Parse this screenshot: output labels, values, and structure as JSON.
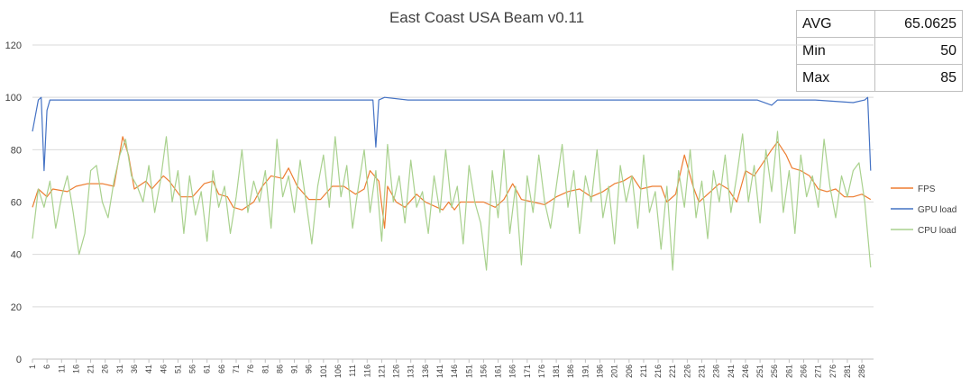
{
  "chart_data": {
    "type": "line",
    "title": "East Coast USA Beam  v0.11",
    "xlabel": "",
    "ylabel": "",
    "ylim": [
      0,
      120
    ],
    "yticks": [
      0,
      20,
      40,
      60,
      80,
      100,
      120
    ],
    "xlim": [
      1,
      290
    ],
    "xtick_start": 1,
    "xtick_step": 5,
    "xtick_count": 58,
    "grid": "horizontal",
    "legend_position": "right",
    "stats_table": [
      {
        "label": "AVG",
        "value": "65.0625"
      },
      {
        "label": "Min",
        "value": "50"
      },
      {
        "label": "Max",
        "value": "85"
      }
    ],
    "series": [
      {
        "name": "FPS",
        "color": "#ed7d31",
        "points": [
          [
            1,
            58
          ],
          [
            3,
            65
          ],
          [
            6,
            62
          ],
          [
            8,
            65
          ],
          [
            13,
            64
          ],
          [
            16,
            66
          ],
          [
            20,
            67
          ],
          [
            25,
            67
          ],
          [
            29,
            66
          ],
          [
            32,
            85
          ],
          [
            34,
            78
          ],
          [
            36,
            65
          ],
          [
            40,
            68
          ],
          [
            42,
            65
          ],
          [
            46,
            70
          ],
          [
            48,
            68
          ],
          [
            52,
            62
          ],
          [
            56,
            62
          ],
          [
            60,
            67
          ],
          [
            63,
            68
          ],
          [
            65,
            63
          ],
          [
            68,
            62
          ],
          [
            70,
            58
          ],
          [
            73,
            57
          ],
          [
            77,
            60
          ],
          [
            80,
            66
          ],
          [
            83,
            70
          ],
          [
            87,
            69
          ],
          [
            89,
            73
          ],
          [
            92,
            66
          ],
          [
            96,
            61
          ],
          [
            100,
            61
          ],
          [
            104,
            66
          ],
          [
            108,
            66
          ],
          [
            112,
            63
          ],
          [
            115,
            65
          ],
          [
            117,
            72
          ],
          [
            120,
            68
          ],
          [
            122,
            50
          ],
          [
            123,
            66
          ],
          [
            126,
            60
          ],
          [
            129,
            58
          ],
          [
            133,
            63
          ],
          [
            136,
            60
          ],
          [
            140,
            58
          ],
          [
            142,
            57
          ],
          [
            144,
            60
          ],
          [
            146,
            57
          ],
          [
            148,
            60
          ],
          [
            152,
            60
          ],
          [
            156,
            60
          ],
          [
            160,
            58
          ],
          [
            163,
            61
          ],
          [
            166,
            67
          ],
          [
            169,
            61
          ],
          [
            173,
            60
          ],
          [
            177,
            59
          ],
          [
            181,
            62
          ],
          [
            185,
            64
          ],
          [
            189,
            65
          ],
          [
            193,
            62
          ],
          [
            197,
            64
          ],
          [
            201,
            67
          ],
          [
            204,
            68
          ],
          [
            207,
            70
          ],
          [
            210,
            65
          ],
          [
            214,
            66
          ],
          [
            217,
            66
          ],
          [
            219,
            60
          ],
          [
            222,
            63
          ],
          [
            225,
            78
          ],
          [
            228,
            66
          ],
          [
            230,
            60
          ],
          [
            233,
            63
          ],
          [
            237,
            67
          ],
          [
            240,
            65
          ],
          [
            243,
            60
          ],
          [
            246,
            72
          ],
          [
            249,
            70
          ],
          [
            252,
            75
          ],
          [
            255,
            80
          ],
          [
            257,
            83
          ],
          [
            260,
            78
          ],
          [
            262,
            73
          ],
          [
            265,
            72
          ],
          [
            268,
            70
          ],
          [
            271,
            65
          ],
          [
            274,
            64
          ],
          [
            277,
            65
          ],
          [
            280,
            62
          ],
          [
            283,
            62
          ],
          [
            286,
            63
          ],
          [
            289,
            61
          ]
        ]
      },
      {
        "name": "GPU load",
        "color": "#4472c4",
        "points": [
          [
            1,
            87
          ],
          [
            3,
            99
          ],
          [
            4,
            100
          ],
          [
            5,
            72
          ],
          [
            6,
            95
          ],
          [
            7,
            99
          ],
          [
            10,
            99
          ],
          [
            20,
            99
          ],
          [
            40,
            99
          ],
          [
            60,
            99
          ],
          [
            80,
            99
          ],
          [
            100,
            99
          ],
          [
            115,
            99
          ],
          [
            118,
            99
          ],
          [
            119,
            81
          ],
          [
            120,
            99
          ],
          [
            122,
            100
          ],
          [
            130,
            99
          ],
          [
            150,
            99
          ],
          [
            170,
            99
          ],
          [
            190,
            99
          ],
          [
            210,
            99
          ],
          [
            230,
            99
          ],
          [
            250,
            99
          ],
          [
            255,
            97
          ],
          [
            257,
            99
          ],
          [
            270,
            99
          ],
          [
            283,
            98
          ],
          [
            287,
            99
          ],
          [
            288,
            100
          ],
          [
            289,
            72
          ]
        ]
      },
      {
        "name": "CPU load",
        "color": "#a9d18e",
        "points": [
          [
            1,
            46
          ],
          [
            3,
            65
          ],
          [
            5,
            58
          ],
          [
            7,
            68
          ],
          [
            9,
            50
          ],
          [
            11,
            62
          ],
          [
            13,
            70
          ],
          [
            15,
            56
          ],
          [
            17,
            40
          ],
          [
            19,
            48
          ],
          [
            21,
            72
          ],
          [
            23,
            74
          ],
          [
            25,
            60
          ],
          [
            27,
            54
          ],
          [
            29,
            68
          ],
          [
            31,
            78
          ],
          [
            33,
            84
          ],
          [
            35,
            70
          ],
          [
            37,
            66
          ],
          [
            39,
            60
          ],
          [
            41,
            74
          ],
          [
            43,
            56
          ],
          [
            45,
            68
          ],
          [
            47,
            85
          ],
          [
            49,
            60
          ],
          [
            51,
            72
          ],
          [
            53,
            48
          ],
          [
            55,
            70
          ],
          [
            57,
            55
          ],
          [
            59,
            64
          ],
          [
            61,
            45
          ],
          [
            63,
            72
          ],
          [
            65,
            58
          ],
          [
            67,
            66
          ],
          [
            69,
            48
          ],
          [
            71,
            62
          ],
          [
            73,
            80
          ],
          [
            75,
            56
          ],
          [
            77,
            68
          ],
          [
            79,
            60
          ],
          [
            81,
            72
          ],
          [
            83,
            50
          ],
          [
            85,
            84
          ],
          [
            87,
            62
          ],
          [
            89,
            70
          ],
          [
            91,
            56
          ],
          [
            93,
            76
          ],
          [
            95,
            60
          ],
          [
            97,
            44
          ],
          [
            99,
            66
          ],
          [
            101,
            78
          ],
          [
            103,
            58
          ],
          [
            105,
            85
          ],
          [
            107,
            62
          ],
          [
            109,
            74
          ],
          [
            111,
            50
          ],
          [
            113,
            66
          ],
          [
            115,
            80
          ],
          [
            117,
            56
          ],
          [
            119,
            72
          ],
          [
            121,
            45
          ],
          [
            123,
            82
          ],
          [
            125,
            60
          ],
          [
            127,
            70
          ],
          [
            129,
            52
          ],
          [
            131,
            76
          ],
          [
            133,
            58
          ],
          [
            135,
            64
          ],
          [
            137,
            48
          ],
          [
            139,
            70
          ],
          [
            141,
            56
          ],
          [
            143,
            80
          ],
          [
            145,
            58
          ],
          [
            147,
            66
          ],
          [
            149,
            44
          ],
          [
            151,
            74
          ],
          [
            153,
            60
          ],
          [
            155,
            52
          ],
          [
            157,
            34
          ],
          [
            159,
            72
          ],
          [
            161,
            54
          ],
          [
            163,
            80
          ],
          [
            165,
            48
          ],
          [
            167,
            66
          ],
          [
            169,
            36
          ],
          [
            171,
            70
          ],
          [
            173,
            56
          ],
          [
            175,
            78
          ],
          [
            177,
            60
          ],
          [
            179,
            50
          ],
          [
            181,
            66
          ],
          [
            183,
            82
          ],
          [
            185,
            58
          ],
          [
            187,
            72
          ],
          [
            189,
            48
          ],
          [
            191,
            70
          ],
          [
            193,
            60
          ],
          [
            195,
            80
          ],
          [
            197,
            54
          ],
          [
            199,
            66
          ],
          [
            201,
            44
          ],
          [
            203,
            74
          ],
          [
            205,
            60
          ],
          [
            207,
            70
          ],
          [
            209,
            50
          ],
          [
            211,
            78
          ],
          [
            213,
            56
          ],
          [
            215,
            64
          ],
          [
            217,
            42
          ],
          [
            219,
            66
          ],
          [
            221,
            34
          ],
          [
            223,
            72
          ],
          [
            225,
            58
          ],
          [
            227,
            80
          ],
          [
            229,
            54
          ],
          [
            231,
            68
          ],
          [
            233,
            46
          ],
          [
            235,
            72
          ],
          [
            237,
            60
          ],
          [
            239,
            78
          ],
          [
            241,
            56
          ],
          [
            243,
            70
          ],
          [
            245,
            86
          ],
          [
            247,
            60
          ],
          [
            249,
            74
          ],
          [
            251,
            52
          ],
          [
            253,
            80
          ],
          [
            255,
            64
          ],
          [
            257,
            87
          ],
          [
            259,
            56
          ],
          [
            261,
            72
          ],
          [
            263,
            48
          ],
          [
            265,
            78
          ],
          [
            267,
            62
          ],
          [
            269,
            70
          ],
          [
            271,
            58
          ],
          [
            273,
            84
          ],
          [
            275,
            66
          ],
          [
            277,
            54
          ],
          [
            279,
            70
          ],
          [
            281,
            62
          ],
          [
            283,
            72
          ],
          [
            285,
            75
          ],
          [
            287,
            60
          ],
          [
            289,
            35
          ]
        ]
      }
    ]
  }
}
